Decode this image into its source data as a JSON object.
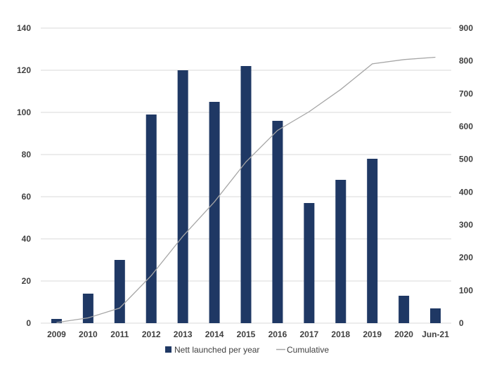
{
  "chart_data": {
    "type": "bar",
    "categories": [
      "2009",
      "2010",
      "2011",
      "2012",
      "2013",
      "2014",
      "2015",
      "2016",
      "2017",
      "2018",
      "2019",
      "2020",
      "Jun-21"
    ],
    "series": [
      {
        "name": "Nett launched per year",
        "type": "bar",
        "axis": "left",
        "color": "#1f3864",
        "values": [
          2,
          14,
          30,
          99,
          120,
          105,
          122,
          96,
          57,
          68,
          78,
          13,
          7
        ]
      },
      {
        "name": "Cumulative",
        "type": "line",
        "axis": "right",
        "color": "#a6a6a6",
        "values": [
          2,
          16,
          46,
          145,
          265,
          370,
          492,
          588,
          645,
          713,
          791,
          804,
          811
        ]
      }
    ],
    "y_left": {
      "ylim": [
        0,
        140
      ],
      "ticks": [
        0,
        20,
        40,
        60,
        80,
        100,
        120,
        140
      ]
    },
    "y_right": {
      "ylim": [
        0,
        900
      ],
      "ticks": [
        0,
        100,
        200,
        300,
        400,
        500,
        600,
        700,
        800,
        900
      ]
    },
    "grid": true,
    "legend": "bottom-center",
    "title": "",
    "xlabel": "",
    "ylabel": ""
  }
}
